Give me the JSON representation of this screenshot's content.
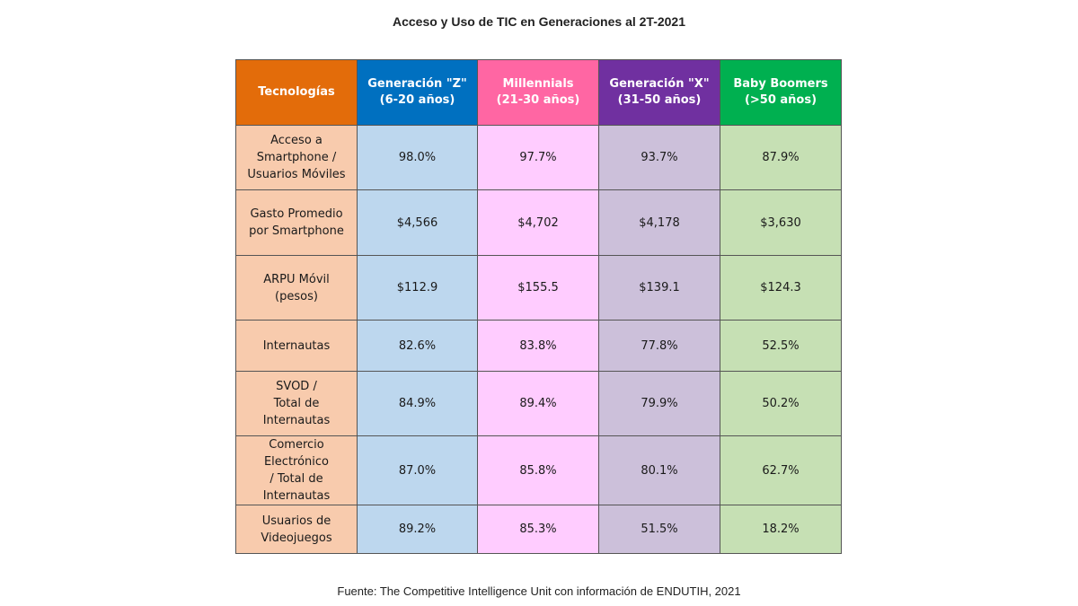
{
  "title": "Acceso y Uso de TIC en Generaciones al 2T-2021",
  "source": "Fuente: The Competitive Intelligence Unit con información de ENDUTIH, 2021",
  "colors": {
    "header_tech": "#E36C0A",
    "header_genz": "#0070C0",
    "header_millennials": "#FF66A3",
    "header_genx": "#7030A0",
    "header_boomers": "#00B050",
    "col_tech": "#F8CBAD",
    "col_genz": "#BDD7EE",
    "col_millennials": "#FFCCFF",
    "col_genx": "#CCC0DA",
    "col_boomers": "#C6E0B4"
  },
  "chart_data": {
    "type": "table",
    "title": "Acceso y Uso de TIC en Generaciones al 2T-2021",
    "columns": [
      {
        "lines": [
          "Tecnologías"
        ]
      },
      {
        "lines": [
          "Generación \"Z\"",
          "(6-20 años)"
        ]
      },
      {
        "lines": [
          "Millennials",
          "(21-30 años)"
        ]
      },
      {
        "lines": [
          "Generación \"X\"",
          "(31-50 años)"
        ]
      },
      {
        "lines": [
          "Baby Boomers",
          "(>50 años)"
        ]
      }
    ],
    "rows": [
      {
        "label_lines": [
          "Acceso a",
          "Smartphone /",
          "Usuarios Móviles"
        ],
        "values": [
          "98.0%",
          "97.7%",
          "93.7%",
          "87.9%"
        ]
      },
      {
        "label_lines": [
          "Gasto Promedio",
          "por Smartphone"
        ],
        "values": [
          "$4,566",
          "$4,702",
          "$4,178",
          "$3,630"
        ]
      },
      {
        "label_lines": [
          "ARPU Móvil",
          "(pesos)"
        ],
        "values": [
          "$112.9",
          "$155.5",
          "$139.1",
          "$124.3"
        ]
      },
      {
        "label_lines": [
          "Internautas"
        ],
        "values": [
          "82.6%",
          "83.8%",
          "77.8%",
          "52.5%"
        ]
      },
      {
        "label_lines": [
          "SVOD /",
          "Total de",
          "Internautas"
        ],
        "values": [
          "84.9%",
          "89.4%",
          "79.9%",
          "50.2%"
        ]
      },
      {
        "label_lines": [
          "Comercio",
          "Electrónico",
          "/ Total de",
          "Internautas"
        ],
        "values": [
          "87.0%",
          "85.8%",
          "80.1%",
          "62.7%"
        ]
      },
      {
        "label_lines": [
          "Usuarios de",
          "Videojuegos"
        ],
        "values": [
          "89.2%",
          "85.3%",
          "51.5%",
          "18.2%"
        ]
      }
    ]
  }
}
